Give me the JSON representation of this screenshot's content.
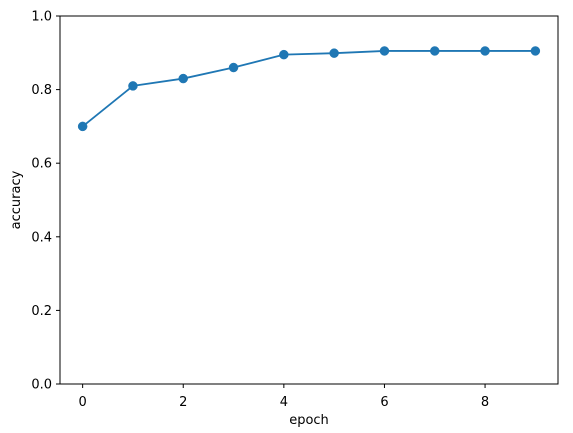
{
  "chart_data": {
    "type": "line",
    "title": "",
    "xlabel": "epoch",
    "ylabel": "accuracy",
    "x": [
      0,
      1,
      2,
      3,
      4,
      5,
      6,
      7,
      8,
      9
    ],
    "series": [
      {
        "values": [
          0.7,
          0.81,
          0.83,
          0.86,
          0.895,
          0.899,
          0.905,
          0.905,
          0.905,
          0.905
        ],
        "color": "#1f77b4",
        "marker": "circle"
      }
    ],
    "xlim": [
      -0.45,
      9.45
    ],
    "ylim": [
      0.0,
      1.0
    ],
    "xticks": [
      0,
      2,
      4,
      6,
      8
    ],
    "yticks": [
      0.0,
      0.2,
      0.4,
      0.6,
      0.8,
      1.0
    ],
    "xtick_labels": [
      "0",
      "2",
      "4",
      "6",
      "8"
    ],
    "ytick_labels": [
      "0.0",
      "0.2",
      "0.4",
      "0.6",
      "0.8",
      "1.0"
    ],
    "grid": false,
    "legend": "none"
  }
}
